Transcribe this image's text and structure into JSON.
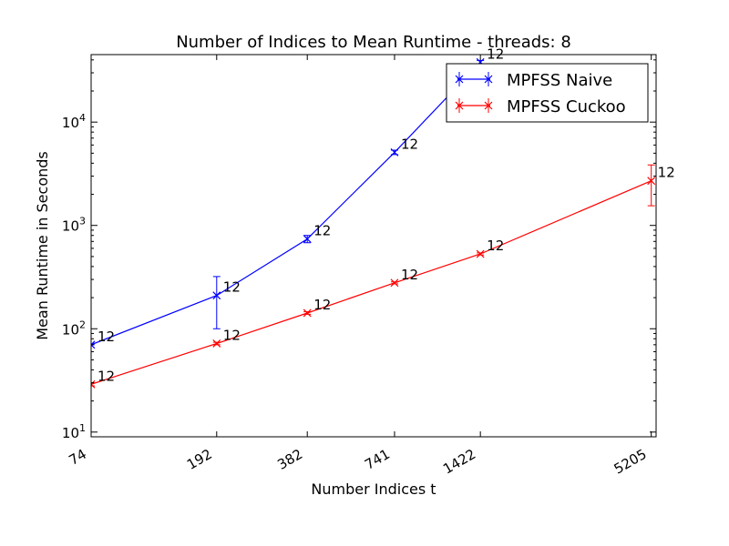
{
  "chart_data": {
    "type": "line",
    "title": "Number of Indices to Mean Runtime - threads: 8",
    "xlabel": "Number Indices t",
    "ylabel": "Mean Runtime in Seconds",
    "x_scale": "log",
    "y_scale": "log",
    "xlim": [
      74,
      5400
    ],
    "ylim": [
      9,
      45000
    ],
    "x_ticks": [
      74,
      192,
      382,
      741,
      1422,
      5205
    ],
    "x_tick_labels": [
      "74",
      "192",
      "382",
      "741",
      "1422",
      "5205"
    ],
    "y_ticks": [
      {
        "value": 10,
        "base": "10",
        "exp": "1"
      },
      {
        "value": 100,
        "base": "10",
        "exp": "2"
      },
      {
        "value": 1000,
        "base": "10",
        "exp": "3"
      },
      {
        "value": 10000,
        "base": "10",
        "exp": "4"
      }
    ],
    "legend_position": "top-right",
    "series": [
      {
        "name": "MPFSS Naive",
        "color": "#0000ff",
        "points": [
          {
            "x": 74,
            "y": 70,
            "lo": 9,
            "hi": 70,
            "label": "12"
          },
          {
            "x": 192,
            "y": 210,
            "lo": 100,
            "hi": 320,
            "label": "12"
          },
          {
            "x": 382,
            "y": 740,
            "lo": 680,
            "hi": 800,
            "label": "12"
          },
          {
            "x": 741,
            "y": 5100,
            "lo": 4850,
            "hi": 5350,
            "label": "12"
          },
          {
            "x": 1422,
            "y": 38000,
            "lo": 36500,
            "hi": 39500,
            "label": "12"
          }
        ]
      },
      {
        "name": "MPFSS Cuckoo",
        "color": "#ff0000",
        "points": [
          {
            "x": 74,
            "y": 29,
            "lo": 28,
            "hi": 30,
            "label": "12"
          },
          {
            "x": 192,
            "y": 72,
            "lo": 70,
            "hi": 74,
            "label": "12"
          },
          {
            "x": 382,
            "y": 142,
            "lo": 138,
            "hi": 146,
            "label": "12"
          },
          {
            "x": 741,
            "y": 278,
            "lo": 272,
            "hi": 284,
            "label": "12"
          },
          {
            "x": 1422,
            "y": 530,
            "lo": 518,
            "hi": 542,
            "label": "12"
          },
          {
            "x": 5205,
            "y": 2700,
            "lo": 1550,
            "hi": 3850,
            "label": "12"
          }
        ]
      }
    ]
  }
}
